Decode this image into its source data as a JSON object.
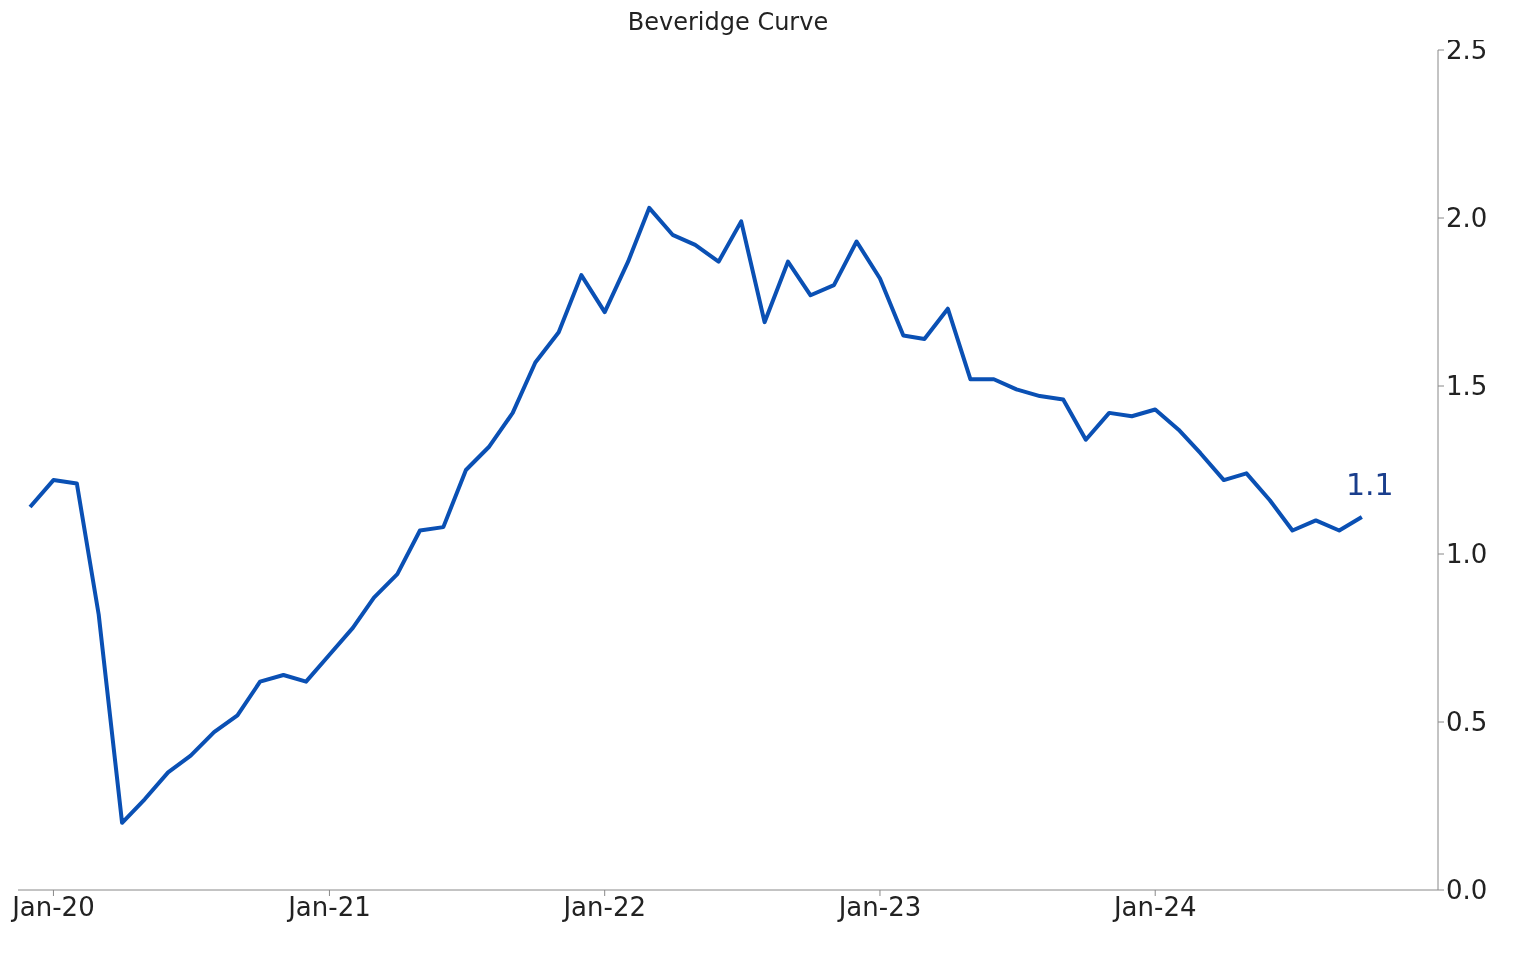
{
  "chart_data": {
    "type": "line",
    "title": "Beveridge Curve",
    "x": [
      "2019-12",
      "2020-01",
      "2020-02",
      "2020-03",
      "2020-04",
      "2020-05",
      "2020-06",
      "2020-07",
      "2020-08",
      "2020-09",
      "2020-10",
      "2020-11",
      "2020-12",
      "2021-01",
      "2021-02",
      "2021-03",
      "2021-04",
      "2021-05",
      "2021-06",
      "2021-07",
      "2021-08",
      "2021-09",
      "2021-10",
      "2021-11",
      "2021-12",
      "2022-01",
      "2022-02",
      "2022-03",
      "2022-04",
      "2022-05",
      "2022-06",
      "2022-07",
      "2022-08",
      "2022-09",
      "2022-10",
      "2022-11",
      "2022-12",
      "2023-01",
      "2023-02",
      "2023-03",
      "2023-04",
      "2023-05",
      "2023-06",
      "2023-07",
      "2023-08",
      "2023-09",
      "2023-10",
      "2023-11",
      "2023-12",
      "2024-01",
      "2024-02",
      "2024-03",
      "2024-04",
      "2024-05",
      "2024-06",
      "2024-07",
      "2024-08",
      "2024-09",
      "2024-10"
    ],
    "series": [
      {
        "color": "#0a50b4",
        "values": [
          1.14,
          1.22,
          1.21,
          0.82,
          0.2,
          0.27,
          0.35,
          0.4,
          0.47,
          0.52,
          0.62,
          0.64,
          0.62,
          0.7,
          0.78,
          0.87,
          0.94,
          1.07,
          1.08,
          1.25,
          1.32,
          1.42,
          1.57,
          1.66,
          1.83,
          1.72,
          1.87,
          2.03,
          1.95,
          1.92,
          1.87,
          1.99,
          1.69,
          1.87,
          1.77,
          1.8,
          1.93,
          1.82,
          1.65,
          1.64,
          1.73,
          1.52,
          1.52,
          1.49,
          1.47,
          1.46,
          1.34,
          1.42,
          1.41,
          1.43,
          1.37,
          1.3,
          1.22,
          1.24,
          1.16,
          1.07,
          1.1,
          1.07,
          1.11
        ]
      }
    ],
    "xlim": [
      "2019-11-15",
      "2025-01-10"
    ],
    "xticks": [
      {
        "value": "2020-01",
        "label": "Jan-20"
      },
      {
        "value": "2021-01",
        "label": "Jan-21"
      },
      {
        "value": "2022-01",
        "label": "Jan-22"
      },
      {
        "value": "2023-01",
        "label": "Jan-23"
      },
      {
        "value": "2024-01",
        "label": "Jan-24"
      }
    ],
    "ylim": [
      0,
      2.5
    ],
    "yticks": [
      {
        "value": 0,
        "label": "0.0"
      },
      {
        "value": 0.5,
        "label": "0.5"
      },
      {
        "value": 1,
        "label": "1.0"
      },
      {
        "value": 1.5,
        "label": "1.5"
      },
      {
        "value": 2,
        "label": "2.0"
      },
      {
        "value": 2.5,
        "label": "2.5"
      }
    ],
    "annotations": [
      {
        "text": "1.1",
        "x": "2024-10",
        "y": 1.11
      }
    ]
  }
}
